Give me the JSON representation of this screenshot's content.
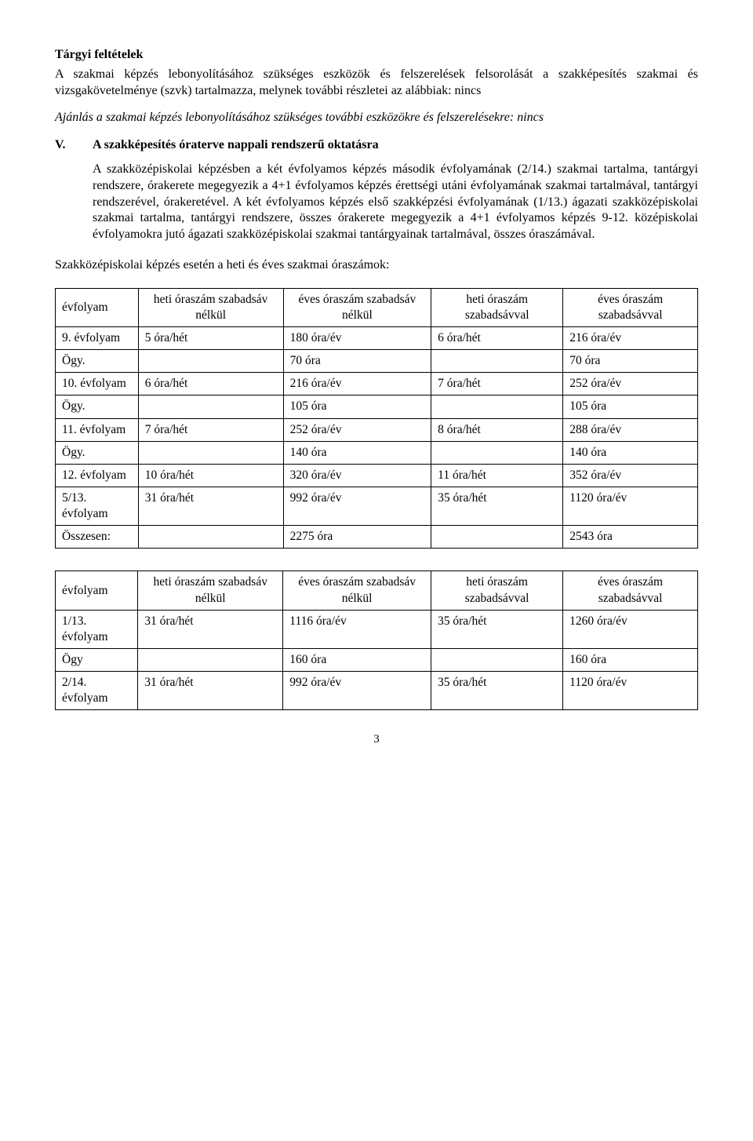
{
  "h1": "Tárgyi feltételek",
  "p1": "A szakmai képzés lebonyolításához szükséges eszközök és felszerelések felsorolását a szakképesítés szakmai és vizsgakövetelménye (szvk) tartalmazza, melynek további részletei az alábbiak: nincs",
  "p2": "Ajánlás a szakmai képzés lebonyolításához szükséges további eszközökre és felszerelésekre: nincs",
  "sectionV": {
    "num": "V.",
    "title": "A szakképesítés óraterve nappali rendszerű oktatásra"
  },
  "p3": "A szakközépiskolai képzésben a két évfolyamos képzés második évfolyamának (2/14.) szakmai tartalma, tantárgyi rendszere, órakerete megegyezik a 4+1 évfolyamos képzés érettségi utáni évfolyamának szakmai tartalmával, tantárgyi rendszerével, órakeretével. A két évfolyamos képzés első szakképzési évfolyamának (1/13.) ágazati szakközépiskolai szakmai tartalma, tantárgyi rendszere, összes órakerete megegyezik a 4+1 évfolyamos képzés 9-12. középiskolai évfolyamokra jutó ágazati szakközépiskolai szakmai tantárgyainak tartalmával, összes óraszámával.",
  "subhead": "Szakközépiskolai képzés esetén a heti és éves szakmai óraszámok:",
  "table1": {
    "columns": [
      "évfolyam",
      "heti óraszám szabadsáv nélkül",
      "éves óraszám szabadsáv nélkül",
      "heti óraszám szabadsávval",
      "éves óraszám szabadsávval"
    ],
    "rows": [
      [
        "9. évfolyam",
        "5 óra/hét",
        "180 óra/év",
        "6 óra/hét",
        "216 óra/év"
      ],
      [
        "Ögy.",
        "",
        "70 óra",
        "",
        "70 óra"
      ],
      [
        "10. évfolyam",
        "6 óra/hét",
        "216 óra/év",
        "7 óra/hét",
        "252 óra/év"
      ],
      [
        "Ögy.",
        "",
        "105 óra",
        "",
        "105 óra"
      ],
      [
        "11. évfolyam",
        "7 óra/hét",
        "252 óra/év",
        "8 óra/hét",
        "288 óra/év"
      ],
      [
        "Ögy.",
        "",
        "140 óra",
        "",
        "140 óra"
      ],
      [
        "12. évfolyam",
        "10 óra/hét",
        "320 óra/év",
        "11 óra/hét",
        "352 óra/év"
      ],
      [
        "5/13. évfolyam",
        "31 óra/hét",
        "992 óra/év",
        "35 óra/hét",
        "1120 óra/év"
      ],
      [
        "Összesen:",
        "",
        "2275 óra",
        "",
        "2543 óra"
      ]
    ]
  },
  "table2": {
    "columns": [
      "évfolyam",
      "heti óraszám szabadsáv nélkül",
      "éves óraszám szabadsáv nélkül",
      "heti óraszám szabadsávval",
      "éves óraszám szabadsávval"
    ],
    "rows": [
      [
        "1/13. évfolyam",
        "31 óra/hét",
        "1116 óra/év",
        "35 óra/hét",
        "1260 óra/év"
      ],
      [
        "Ögy",
        "",
        "160 óra",
        "",
        "160 óra"
      ],
      [
        "2/14. évfolyam",
        "31 óra/hét",
        "992 óra/év",
        "35 óra/hét",
        "1120 óra/év"
      ]
    ]
  },
  "pagenum": "3"
}
